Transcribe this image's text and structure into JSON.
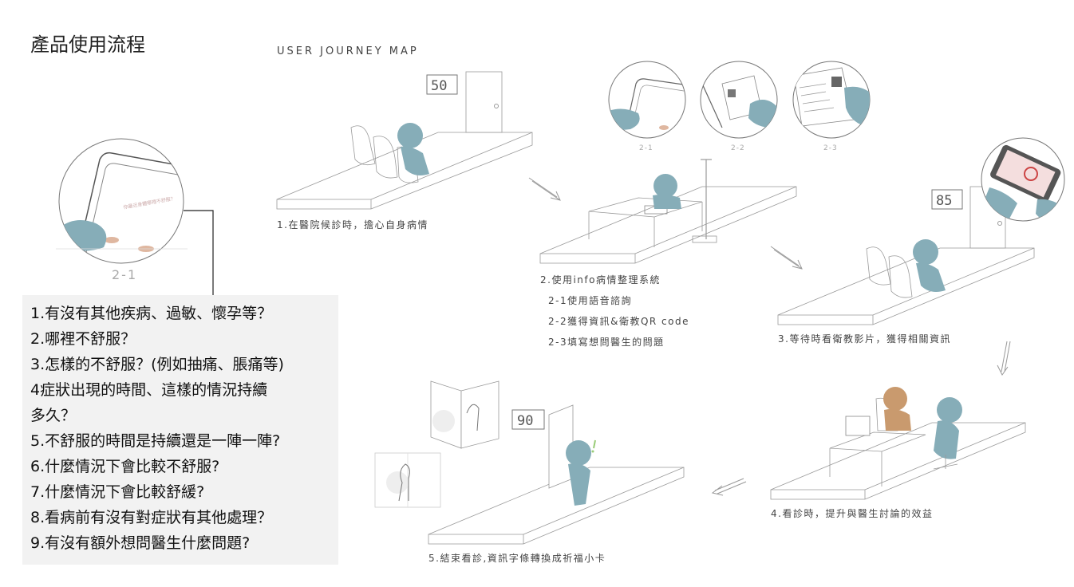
{
  "title": "產品使用流程",
  "map_title": "USER JOURNEY MAP",
  "accent_color": "#86adb8",
  "skin_color": "#c99a6e",
  "zoom_label": "2-1",
  "queue_numbers": [
    "50",
    "85",
    "90"
  ],
  "detail_labels": [
    "2-1",
    "2-2",
    "2-3"
  ],
  "steps": [
    {
      "caption": "1.在醫院候診時，擔心自身病情"
    },
    {
      "caption": "2.使用info病情整理系統",
      "subs": [
        "2-1使用語音諮詢",
        "2-2獲得資訊&衛教QR code",
        "2-3填寫想問醫生的問題"
      ]
    },
    {
      "caption": "3.等待時看衛教影片，獲得相關資訊"
    },
    {
      "caption": "4.看診時，提升與醫生討論的效益"
    },
    {
      "caption": "5.結束看診,資訊字條轉換成祈福小卡"
    }
  ],
  "questions": [
    "1.有沒有其他疾病、過敏、懷孕等？",
    "2.哪裡不舒服？",
    "3.怎樣的不舒服？(例如抽痛、脹痛等)",
    "4症狀出現的時間、這樣的情況持續",
    "多久？",
    "5.不舒服的時間是持續還是一陣一陣?",
    "6.什麼情況下會比較不舒服?",
    "7.什麼情況下會比較舒緩?",
    "8.看病前有沒有對症狀有其他處理？",
    "9.有沒有額外想問醫生什麼問題?"
  ]
}
